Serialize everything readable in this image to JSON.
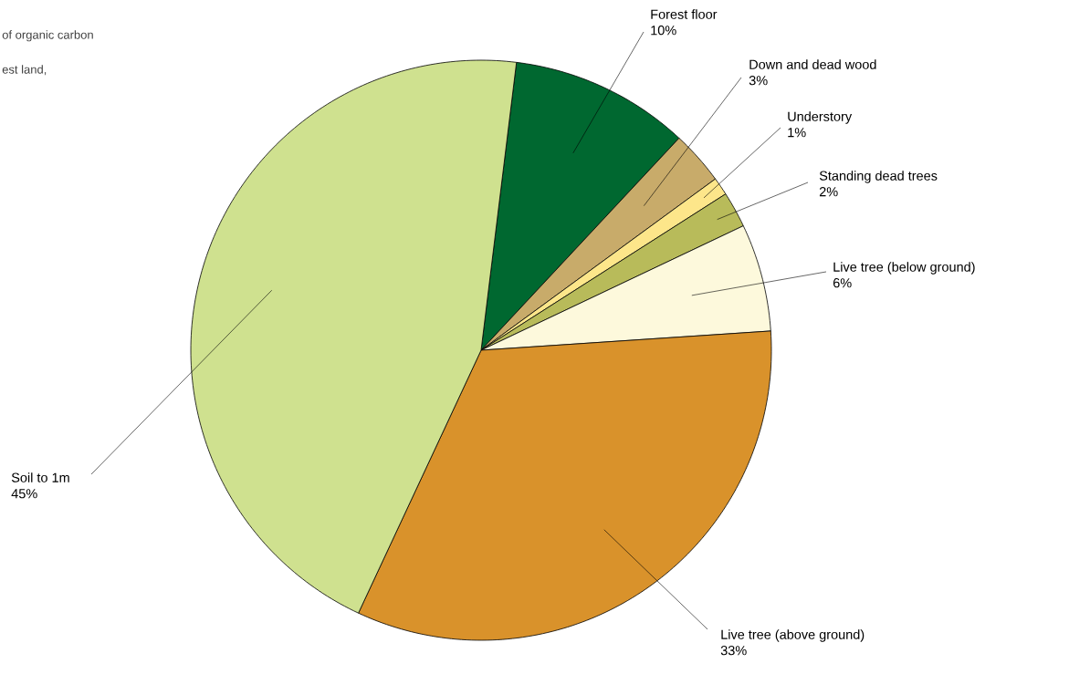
{
  "chart_data": {
    "type": "pie",
    "categories": [
      "Forest floor",
      "Down and dead wood",
      "Understory",
      "Standing dead trees",
      "Live tree (below ground)",
      "Live tree (above ground)",
      "Soil to 1m"
    ],
    "values": [
      10,
      3,
      1,
      2,
      6,
      33,
      45
    ],
    "value_labels": [
      "10%",
      "3%",
      "1%",
      "2%",
      "6%",
      "33%",
      "45%"
    ],
    "colors": [
      "#006830",
      "#c8ab6a",
      "#fde68a",
      "#b8bb5a",
      "#fdf9dc",
      "#d9922b",
      "#cfe18f"
    ],
    "annotations": [
      "of organic carbon",
      "est land,"
    ]
  }
}
